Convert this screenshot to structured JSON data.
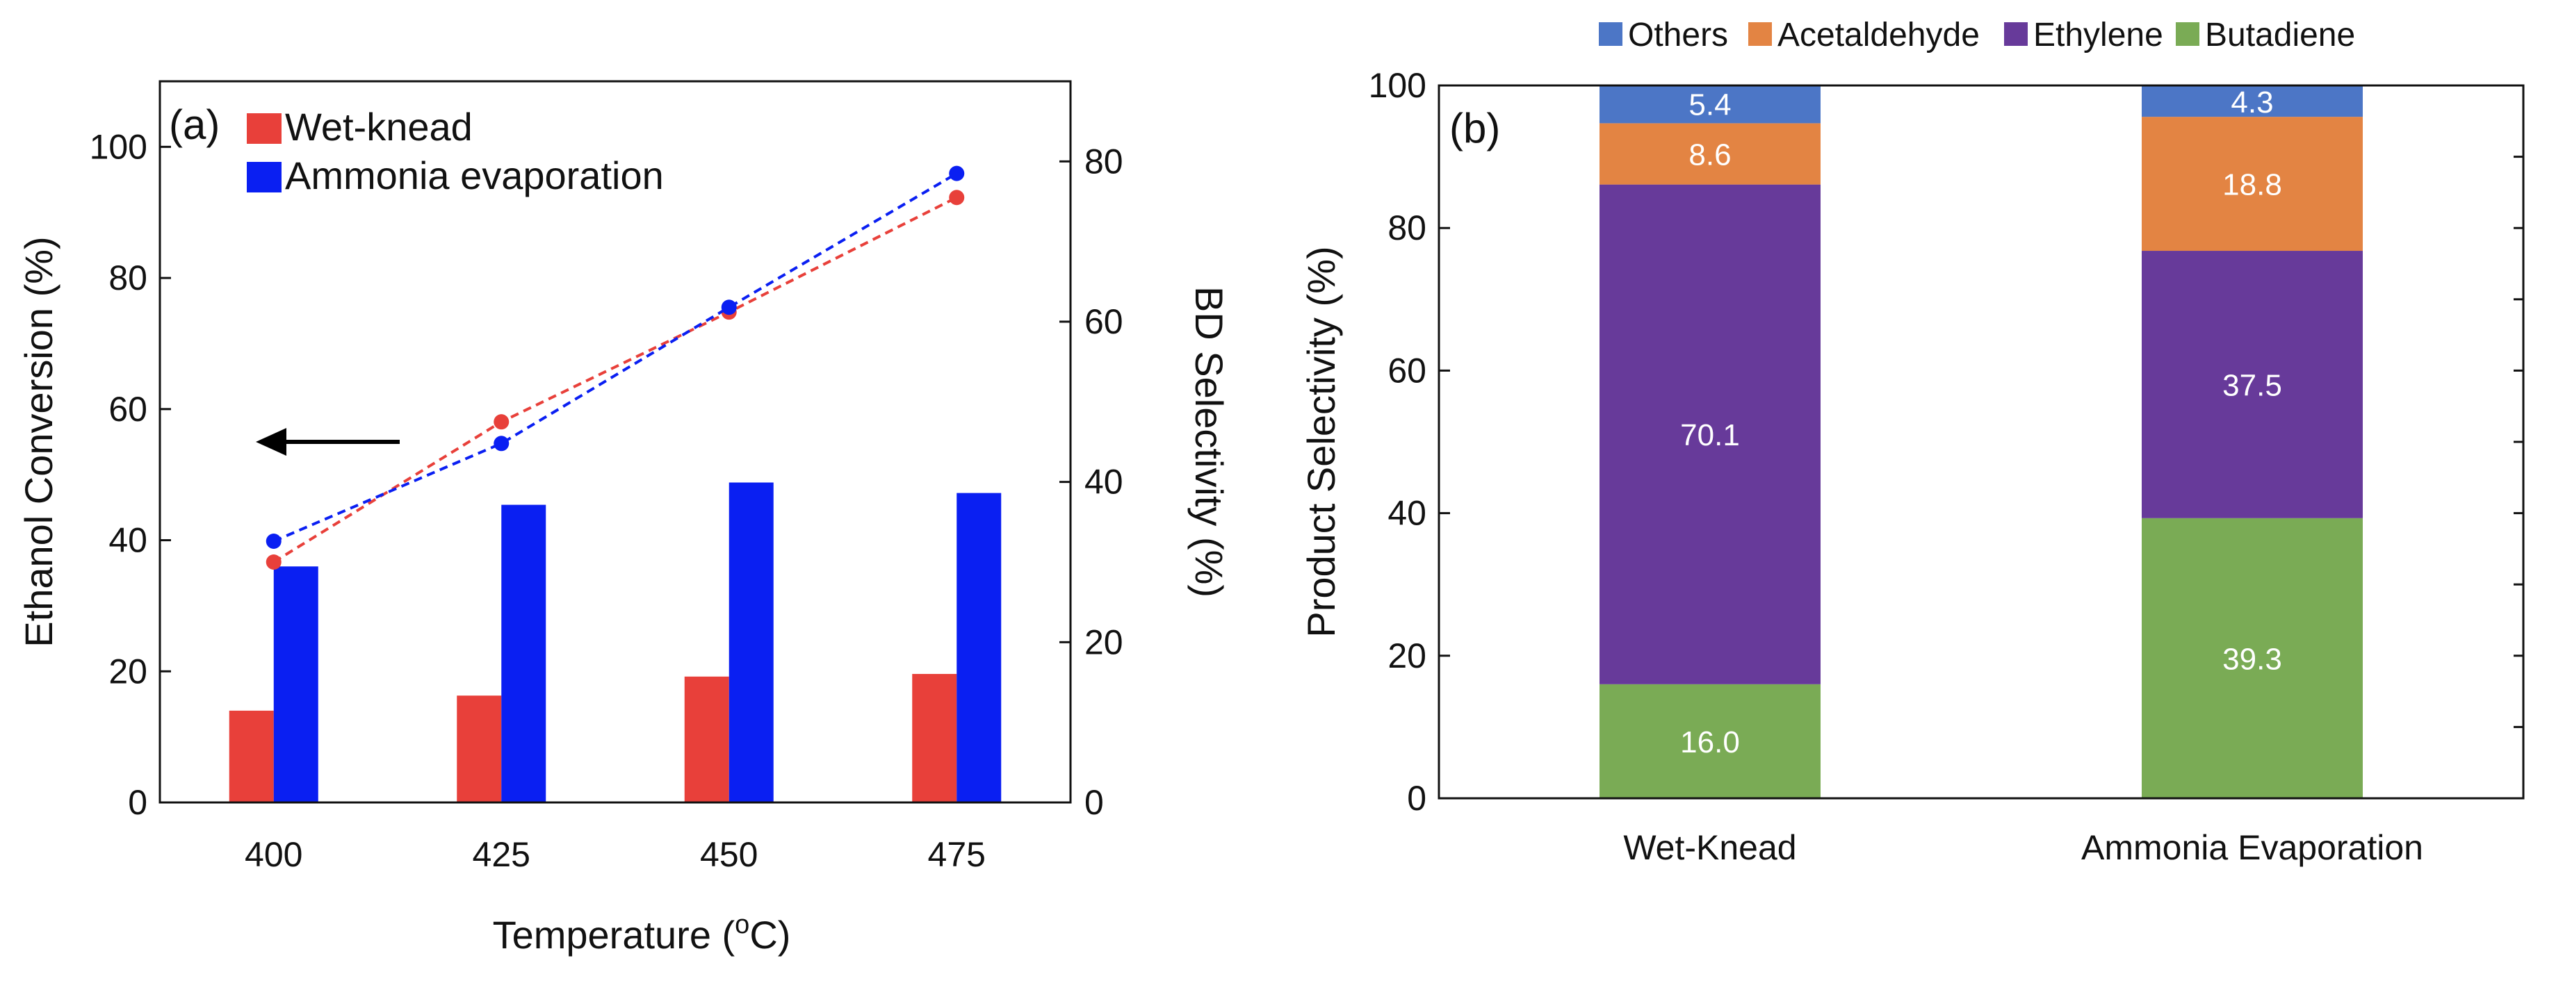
{
  "chart_data": [
    {
      "type": "bar",
      "panel_label": "(a)",
      "categories": [
        "400",
        "425",
        "450",
        "475"
      ],
      "xlabel_prefix": "Temperature (",
      "xlabel_sup": "o",
      "xlabel_suffix": "C)",
      "ylabel": "Ethanol Conversion (%)",
      "y2label": "BD Selectivity (%)",
      "ylim": [
        0,
        110
      ],
      "y_ticks": [
        "0",
        "20",
        "40",
        "60",
        "80",
        "100"
      ],
      "y2lim": [
        0,
        90
      ],
      "y2_ticks": [
        "0",
        "20",
        "40",
        "60",
        "80"
      ],
      "series": [
        {
          "name": "Wet-knead",
          "type": "bar",
          "axis": "left",
          "color": "#e8403a",
          "values": [
            14,
            16.3,
            19.2,
            19.6
          ]
        },
        {
          "name": "Ammonia evaporation",
          "type": "bar",
          "axis": "left",
          "color": "#0a1ff2",
          "values": [
            36,
            45.4,
            48.8,
            47.2
          ]
        },
        {
          "name": "Wet-knead BD selectivity",
          "type": "line",
          "axis": "right",
          "color": "#e8403a",
          "values": [
            30.0,
            47.5,
            61.2,
            75.5
          ]
        },
        {
          "name": "Ammonia evaporation BD selectivity",
          "type": "line",
          "axis": "right",
          "color": "#0a1ff2",
          "values": [
            32.6,
            44.8,
            61.8,
            78.5
          ]
        }
      ],
      "annotation": "arrow pointing left toward the left axis"
    },
    {
      "type": "bar",
      "stacked": true,
      "panel_label": "(b)",
      "categories": [
        "Wet-Knead",
        "Ammonia Evaporation"
      ],
      "ylabel": "Product Selectivity (%)",
      "ylim": [
        0,
        100
      ],
      "y_ticks": [
        "0",
        "20",
        "40",
        "60",
        "80",
        "100"
      ],
      "legend_position": "top",
      "series": [
        {
          "name": "Butadiene",
          "color": "#7aab55",
          "values": [
            16.0,
            39.3
          ],
          "labels": [
            "16.0",
            "39.3"
          ]
        },
        {
          "name": "Ethylene",
          "color": "#673a9a",
          "values": [
            70.1,
            37.5
          ],
          "labels": [
            "70.1",
            "37.5"
          ]
        },
        {
          "name": "Acetaldehyde",
          "color": "#e38443",
          "values": [
            8.6,
            18.8
          ],
          "labels": [
            "8.6",
            "18.8"
          ]
        },
        {
          "name": "Others",
          "color": "#4c76c6",
          "values": [
            5.4,
            4.3
          ],
          "labels": [
            "5.4",
            "4.3"
          ]
        }
      ],
      "legend_order": [
        "Others",
        "Acetaldehyde",
        "Ethylene",
        "Butadiene"
      ]
    }
  ]
}
